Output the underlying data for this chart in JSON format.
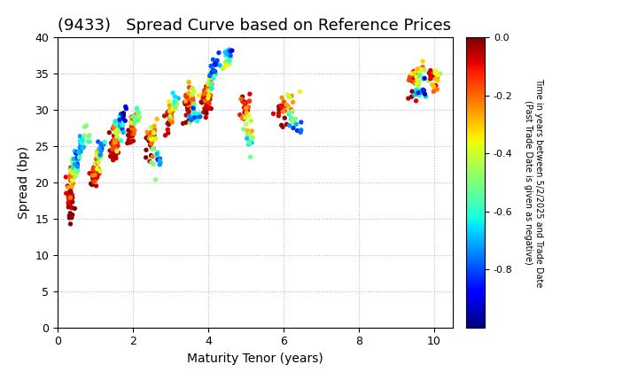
{
  "title": "(9433)   Spread Curve based on Reference Prices",
  "xlabel": "Maturity Tenor (years)",
  "ylabel": "Spread (bp)",
  "xlim": [
    0,
    10.5
  ],
  "ylim": [
    0,
    40
  ],
  "xticks": [
    0,
    2,
    4,
    6,
    8,
    10
  ],
  "yticks": [
    0,
    5,
    10,
    15,
    20,
    25,
    30,
    35,
    40
  ],
  "cbar_label_line1": "Time in years between 5/2/2025 and Trade Date",
  "cbar_label_line2": "(Past Trade Date is given as negative)",
  "cbar_ticks": [
    0.0,
    -0.2,
    -0.4,
    -0.6,
    -0.8
  ],
  "vmin": -1.0,
  "vmax": 0.0,
  "colormap": "jet",
  "background_color": "#ffffff",
  "grid_color": "#bbbbbb",
  "title_fontsize": 13,
  "label_fontsize": 10,
  "tick_fontsize": 9,
  "point_size": 8,
  "point_clusters": [
    {
      "x_center": 0.32,
      "y_center": 18.5,
      "x_spread": 0.05,
      "y_spread": 1.2,
      "n": 18,
      "color_range": [
        -0.12,
        -0.02
      ]
    },
    {
      "x_center": 0.37,
      "y_center": 20.5,
      "x_spread": 0.05,
      "y_spread": 1.0,
      "n": 14,
      "color_range": [
        -0.28,
        -0.08
      ]
    },
    {
      "x_center": 0.42,
      "y_center": 21.5,
      "x_spread": 0.05,
      "y_spread": 0.9,
      "n": 12,
      "color_range": [
        -0.48,
        -0.25
      ]
    },
    {
      "x_center": 0.47,
      "y_center": 22.5,
      "x_spread": 0.05,
      "y_spread": 0.8,
      "n": 10,
      "color_range": [
        -0.68,
        -0.42
      ]
    },
    {
      "x_center": 0.52,
      "y_center": 23.0,
      "x_spread": 0.05,
      "y_spread": 0.7,
      "n": 9,
      "color_range": [
        -0.88,
        -0.62
      ]
    },
    {
      "x_center": 0.35,
      "y_center": 16.5,
      "x_spread": 0.04,
      "y_spread": 0.8,
      "n": 7,
      "color_range": [
        -0.05,
        0.0
      ]
    },
    {
      "x_center": 0.38,
      "y_center": 15.0,
      "x_spread": 0.04,
      "y_spread": 0.6,
      "n": 5,
      "color_range": [
        -0.02,
        0.0
      ]
    },
    {
      "x_center": 0.55,
      "y_center": 24.0,
      "x_spread": 0.06,
      "y_spread": 0.9,
      "n": 9,
      "color_range": [
        -0.85,
        -0.58
      ]
    },
    {
      "x_center": 0.65,
      "y_center": 25.5,
      "x_spread": 0.07,
      "y_spread": 1.0,
      "n": 9,
      "color_range": [
        -0.75,
        -0.48
      ]
    },
    {
      "x_center": 0.75,
      "y_center": 26.5,
      "x_spread": 0.06,
      "y_spread": 0.7,
      "n": 7,
      "color_range": [
        -0.65,
        -0.38
      ]
    },
    {
      "x_center": 0.95,
      "y_center": 20.5,
      "x_spread": 0.05,
      "y_spread": 1.2,
      "n": 18,
      "color_range": [
        -0.08,
        0.0
      ]
    },
    {
      "x_center": 1.0,
      "y_center": 21.5,
      "x_spread": 0.05,
      "y_spread": 1.0,
      "n": 14,
      "color_range": [
        -0.25,
        -0.05
      ]
    },
    {
      "x_center": 1.05,
      "y_center": 22.5,
      "x_spread": 0.05,
      "y_spread": 0.8,
      "n": 11,
      "color_range": [
        -0.45,
        -0.18
      ]
    },
    {
      "x_center": 1.1,
      "y_center": 23.5,
      "x_spread": 0.05,
      "y_spread": 0.8,
      "n": 10,
      "color_range": [
        -0.65,
        -0.38
      ]
    },
    {
      "x_center": 1.15,
      "y_center": 24.5,
      "x_spread": 0.05,
      "y_spread": 0.7,
      "n": 9,
      "color_range": [
        -0.85,
        -0.58
      ]
    },
    {
      "x_center": 1.48,
      "y_center": 24.5,
      "x_spread": 0.05,
      "y_spread": 1.2,
      "n": 18,
      "color_range": [
        -0.08,
        0.0
      ]
    },
    {
      "x_center": 1.53,
      "y_center": 25.5,
      "x_spread": 0.05,
      "y_spread": 1.0,
      "n": 14,
      "color_range": [
        -0.25,
        -0.05
      ]
    },
    {
      "x_center": 1.58,
      "y_center": 26.5,
      "x_spread": 0.05,
      "y_spread": 0.9,
      "n": 12,
      "color_range": [
        -0.45,
        -0.18
      ]
    },
    {
      "x_center": 1.63,
      "y_center": 27.5,
      "x_spread": 0.05,
      "y_spread": 0.8,
      "n": 11,
      "color_range": [
        -0.65,
        -0.38
      ]
    },
    {
      "x_center": 1.68,
      "y_center": 28.5,
      "x_spread": 0.05,
      "y_spread": 0.7,
      "n": 9,
      "color_range": [
        -0.85,
        -0.58
      ]
    },
    {
      "x_center": 1.73,
      "y_center": 29.5,
      "x_spread": 0.05,
      "y_spread": 0.6,
      "n": 7,
      "color_range": [
        -1.0,
        -0.78
      ]
    },
    {
      "x_center": 1.95,
      "y_center": 26.5,
      "x_spread": 0.05,
      "y_spread": 1.0,
      "n": 14,
      "color_range": [
        -0.08,
        0.0
      ]
    },
    {
      "x_center": 2.0,
      "y_center": 27.5,
      "x_spread": 0.05,
      "y_spread": 0.9,
      "n": 11,
      "color_range": [
        -0.25,
        -0.05
      ]
    },
    {
      "x_center": 2.05,
      "y_center": 28.5,
      "x_spread": 0.05,
      "y_spread": 0.8,
      "n": 10,
      "color_range": [
        -0.45,
        -0.18
      ]
    },
    {
      "x_center": 2.1,
      "y_center": 29.5,
      "x_spread": 0.05,
      "y_spread": 0.7,
      "n": 9,
      "color_range": [
        -0.65,
        -0.38
      ]
    },
    {
      "x_center": 2.45,
      "y_center": 25.0,
      "x_spread": 0.06,
      "y_spread": 1.2,
      "n": 16,
      "color_range": [
        -0.08,
        0.0
      ]
    },
    {
      "x_center": 2.5,
      "y_center": 26.0,
      "x_spread": 0.06,
      "y_spread": 1.0,
      "n": 13,
      "color_range": [
        -0.25,
        -0.08
      ]
    },
    {
      "x_center": 2.55,
      "y_center": 26.5,
      "x_spread": 0.06,
      "y_spread": 0.9,
      "n": 11,
      "color_range": [
        -0.45,
        -0.25
      ]
    },
    {
      "x_center": 2.6,
      "y_center": 23.5,
      "x_spread": 0.06,
      "y_spread": 0.9,
      "n": 9,
      "color_range": [
        -0.65,
        -0.45
      ]
    },
    {
      "x_center": 2.65,
      "y_center": 23.0,
      "x_spread": 0.06,
      "y_spread": 0.7,
      "n": 7,
      "color_range": [
        -0.85,
        -0.65
      ]
    },
    {
      "x_center": 2.95,
      "y_center": 28.5,
      "x_spread": 0.06,
      "y_spread": 1.0,
      "n": 14,
      "color_range": [
        -0.12,
        0.0
      ]
    },
    {
      "x_center": 3.0,
      "y_center": 29.5,
      "x_spread": 0.06,
      "y_spread": 0.9,
      "n": 11,
      "color_range": [
        -0.3,
        -0.08
      ]
    },
    {
      "x_center": 3.05,
      "y_center": 30.5,
      "x_spread": 0.06,
      "y_spread": 0.7,
      "n": 9,
      "color_range": [
        -0.5,
        -0.25
      ]
    },
    {
      "x_center": 3.1,
      "y_center": 31.0,
      "x_spread": 0.06,
      "y_spread": 0.6,
      "n": 7,
      "color_range": [
        -0.7,
        -0.45
      ]
    },
    {
      "x_center": 3.45,
      "y_center": 30.0,
      "x_spread": 0.07,
      "y_spread": 1.2,
      "n": 16,
      "color_range": [
        -0.08,
        0.0
      ]
    },
    {
      "x_center": 3.5,
      "y_center": 31.0,
      "x_spread": 0.07,
      "y_spread": 1.0,
      "n": 13,
      "color_range": [
        -0.25,
        -0.05
      ]
    },
    {
      "x_center": 3.55,
      "y_center": 32.0,
      "x_spread": 0.07,
      "y_spread": 0.9,
      "n": 11,
      "color_range": [
        -0.45,
        -0.18
      ]
    },
    {
      "x_center": 3.6,
      "y_center": 29.5,
      "x_spread": 0.07,
      "y_spread": 0.9,
      "n": 10,
      "color_range": [
        -0.65,
        -0.38
      ]
    },
    {
      "x_center": 3.65,
      "y_center": 28.5,
      "x_spread": 0.06,
      "y_spread": 0.7,
      "n": 9,
      "color_range": [
        -0.85,
        -0.58
      ]
    },
    {
      "x_center": 3.95,
      "y_center": 30.5,
      "x_spread": 0.07,
      "y_spread": 1.2,
      "n": 18,
      "color_range": [
        -0.08,
        0.0
      ]
    },
    {
      "x_center": 4.0,
      "y_center": 31.5,
      "x_spread": 0.07,
      "y_spread": 1.0,
      "n": 16,
      "color_range": [
        -0.25,
        -0.05
      ]
    },
    {
      "x_center": 4.05,
      "y_center": 33.0,
      "x_spread": 0.07,
      "y_spread": 0.9,
      "n": 13,
      "color_range": [
        -0.45,
        -0.18
      ]
    },
    {
      "x_center": 4.1,
      "y_center": 34.5,
      "x_spread": 0.07,
      "y_spread": 0.8,
      "n": 11,
      "color_range": [
        -0.65,
        -0.38
      ]
    },
    {
      "x_center": 4.15,
      "y_center": 35.5,
      "x_spread": 0.07,
      "y_spread": 0.7,
      "n": 9,
      "color_range": [
        -0.85,
        -0.58
      ]
    },
    {
      "x_center": 4.2,
      "y_center": 37.0,
      "x_spread": 0.07,
      "y_spread": 0.5,
      "n": 7,
      "color_range": [
        -1.0,
        -0.78
      ]
    },
    {
      "x_center": 4.48,
      "y_center": 36.5,
      "x_spread": 0.06,
      "y_spread": 0.7,
      "n": 10,
      "color_range": [
        -0.55,
        -0.28
      ]
    },
    {
      "x_center": 4.53,
      "y_center": 37.2,
      "x_spread": 0.06,
      "y_spread": 0.5,
      "n": 8,
      "color_range": [
        -0.75,
        -0.48
      ]
    },
    {
      "x_center": 4.58,
      "y_center": 37.8,
      "x_spread": 0.06,
      "y_spread": 0.4,
      "n": 7,
      "color_range": [
        -0.95,
        -0.68
      ]
    },
    {
      "x_center": 4.95,
      "y_center": 30.5,
      "x_spread": 0.06,
      "y_spread": 1.0,
      "n": 13,
      "color_range": [
        -0.12,
        0.0
      ]
    },
    {
      "x_center": 5.0,
      "y_center": 29.5,
      "x_spread": 0.06,
      "y_spread": 0.9,
      "n": 11,
      "color_range": [
        -0.3,
        -0.08
      ]
    },
    {
      "x_center": 5.05,
      "y_center": 27.5,
      "x_spread": 0.06,
      "y_spread": 0.9,
      "n": 9,
      "color_range": [
        -0.5,
        -0.25
      ]
    },
    {
      "x_center": 5.1,
      "y_center": 25.5,
      "x_spread": 0.06,
      "y_spread": 0.7,
      "n": 7,
      "color_range": [
        -0.7,
        -0.45
      ]
    },
    {
      "x_center": 5.95,
      "y_center": 29.5,
      "x_spread": 0.09,
      "y_spread": 1.2,
      "n": 13,
      "color_range": [
        -0.08,
        0.0
      ]
    },
    {
      "x_center": 6.05,
      "y_center": 30.5,
      "x_spread": 0.09,
      "y_spread": 1.0,
      "n": 11,
      "color_range": [
        -0.25,
        -0.08
      ]
    },
    {
      "x_center": 6.15,
      "y_center": 31.0,
      "x_spread": 0.09,
      "y_spread": 0.8,
      "n": 9,
      "color_range": [
        -0.45,
        -0.25
      ]
    },
    {
      "x_center": 6.25,
      "y_center": 28.5,
      "x_spread": 0.09,
      "y_spread": 0.8,
      "n": 9,
      "color_range": [
        -0.65,
        -0.45
      ]
    },
    {
      "x_center": 6.35,
      "y_center": 27.5,
      "x_spread": 0.09,
      "y_spread": 0.6,
      "n": 7,
      "color_range": [
        -0.85,
        -0.65
      ]
    },
    {
      "x_center": 9.45,
      "y_center": 33.5,
      "x_spread": 0.09,
      "y_spread": 1.0,
      "n": 16,
      "color_range": [
        -0.08,
        0.0
      ]
    },
    {
      "x_center": 9.5,
      "y_center": 34.5,
      "x_spread": 0.09,
      "y_spread": 0.9,
      "n": 13,
      "color_range": [
        -0.25,
        -0.05
      ]
    },
    {
      "x_center": 9.55,
      "y_center": 35.5,
      "x_spread": 0.09,
      "y_spread": 0.7,
      "n": 11,
      "color_range": [
        -0.45,
        -0.18
      ]
    },
    {
      "x_center": 9.6,
      "y_center": 34.0,
      "x_spread": 0.09,
      "y_spread": 0.7,
      "n": 9,
      "color_range": [
        -0.65,
        -0.38
      ]
    },
    {
      "x_center": 9.65,
      "y_center": 32.5,
      "x_spread": 0.08,
      "y_spread": 0.7,
      "n": 7,
      "color_range": [
        -0.85,
        -0.58
      ]
    },
    {
      "x_center": 9.7,
      "y_center": 33.0,
      "x_spread": 0.07,
      "y_spread": 0.5,
      "n": 5,
      "color_range": [
        -1.0,
        -0.78
      ]
    },
    {
      "x_center": 9.95,
      "y_center": 34.5,
      "x_spread": 0.07,
      "y_spread": 0.7,
      "n": 9,
      "color_range": [
        -0.12,
        0.0
      ]
    },
    {
      "x_center": 10.0,
      "y_center": 33.5,
      "x_spread": 0.07,
      "y_spread": 0.6,
      "n": 7,
      "color_range": [
        -0.3,
        -0.08
      ]
    },
    {
      "x_center": 10.05,
      "y_center": 34.8,
      "x_spread": 0.07,
      "y_spread": 0.5,
      "n": 6,
      "color_range": [
        -0.5,
        -0.25
      ]
    }
  ]
}
